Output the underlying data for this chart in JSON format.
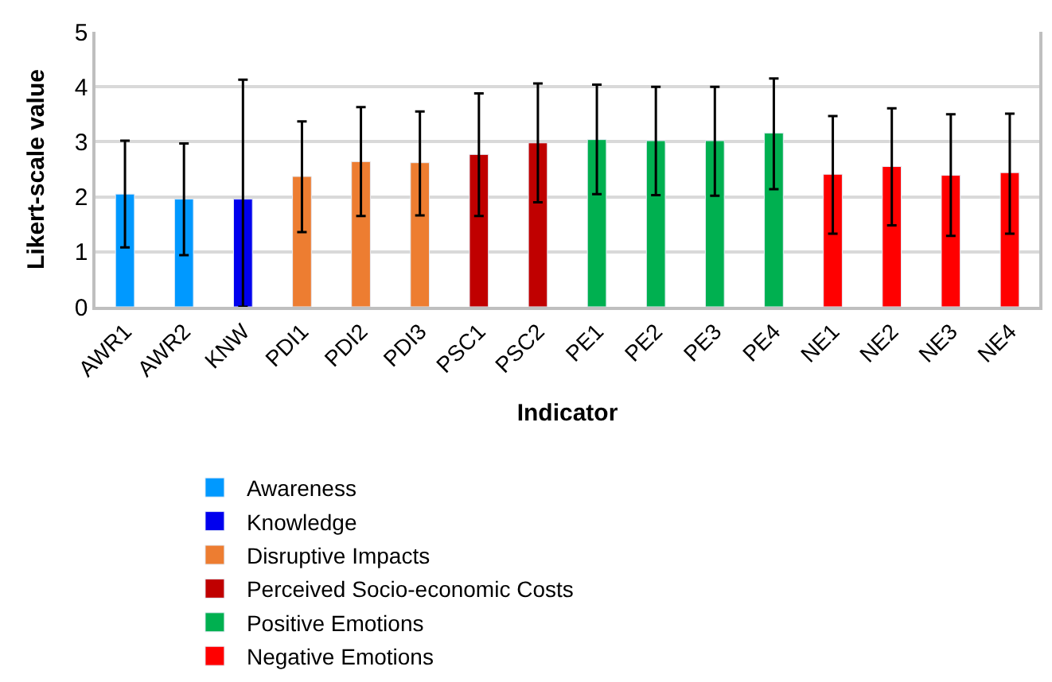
{
  "chart_data": {
    "type": "bar",
    "xlabel": "Indicator",
    "ylabel": "Likert-scale value",
    "categories": [
      "AWR1",
      "AWR2",
      "KNW",
      "PDI1",
      "PDI2",
      "PDI3",
      "PSC1",
      "PSC2",
      "PE1",
      "PE2",
      "PE3",
      "PE4",
      "NE1",
      "NE2",
      "NE3",
      "NE4"
    ],
    "series": [
      {
        "name": "Awareness",
        "color": "#0099ff",
        "values": [
          2.05,
          1.96,
          null,
          null,
          null,
          null,
          null,
          null,
          null,
          null,
          null,
          null,
          null,
          null,
          null,
          null
        ],
        "errors": [
          [
            1.08,
            3.02
          ],
          [
            0.94,
            2.97
          ],
          null,
          null,
          null,
          null,
          null,
          null,
          null,
          null,
          null,
          null,
          null,
          null,
          null,
          null
        ]
      },
      {
        "name": "Knowledge",
        "color": "#0000ee",
        "values": [
          null,
          null,
          1.96,
          null,
          null,
          null,
          null,
          null,
          null,
          null,
          null,
          null,
          null,
          null,
          null,
          null
        ],
        "errors": [
          null,
          null,
          [
            0,
            4.13
          ],
          null,
          null,
          null,
          null,
          null,
          null,
          null,
          null,
          null,
          null,
          null,
          null,
          null
        ]
      },
      {
        "name": "Disruptive Impacts",
        "color": "#ed7d31",
        "values": [
          null,
          null,
          null,
          2.37,
          2.64,
          2.62,
          null,
          null,
          null,
          null,
          null,
          null,
          null,
          null,
          null,
          null
        ],
        "errors": [
          null,
          null,
          null,
          [
            1.36,
            3.37
          ],
          [
            1.65,
            3.63
          ],
          [
            1.66,
            3.55
          ],
          null,
          null,
          null,
          null,
          null,
          null,
          null,
          null,
          null,
          null
        ]
      },
      {
        "name": "Perceived Socio-economic Costs",
        "color": "#c00000",
        "values": [
          null,
          null,
          null,
          null,
          null,
          null,
          2.77,
          2.98,
          null,
          null,
          null,
          null,
          null,
          null,
          null,
          null
        ],
        "errors": [
          null,
          null,
          null,
          null,
          null,
          null,
          [
            1.65,
            3.88
          ],
          [
            1.9,
            4.06
          ],
          null,
          null,
          null,
          null,
          null,
          null,
          null,
          null
        ]
      },
      {
        "name": "Positive Emotions",
        "color": "#00b050",
        "values": [
          null,
          null,
          null,
          null,
          null,
          null,
          null,
          null,
          3.04,
          3.02,
          3.02,
          3.16,
          null,
          null,
          null,
          null
        ],
        "errors": [
          null,
          null,
          null,
          null,
          null,
          null,
          null,
          null,
          [
            2.05,
            4.04
          ],
          [
            2.03,
            4.0
          ],
          [
            2.02,
            4.0
          ],
          [
            2.14,
            4.15
          ],
          null,
          null,
          null,
          null
        ]
      },
      {
        "name": "Negative Emotions",
        "color": "#ff0000",
        "values": [
          null,
          null,
          null,
          null,
          null,
          null,
          null,
          null,
          null,
          null,
          null,
          null,
          2.41,
          2.55,
          2.39,
          2.44
        ],
        "errors": [
          null,
          null,
          null,
          null,
          null,
          null,
          null,
          null,
          null,
          null,
          null,
          null,
          [
            1.33,
            3.47
          ],
          [
            1.48,
            3.61
          ],
          [
            1.29,
            3.5
          ],
          [
            1.33,
            3.51
          ]
        ]
      }
    ],
    "ylim": [
      0,
      5
    ],
    "yticks": [
      0,
      1,
      2,
      3,
      4,
      5
    ],
    "grid": "y",
    "legend": "bottom"
  }
}
